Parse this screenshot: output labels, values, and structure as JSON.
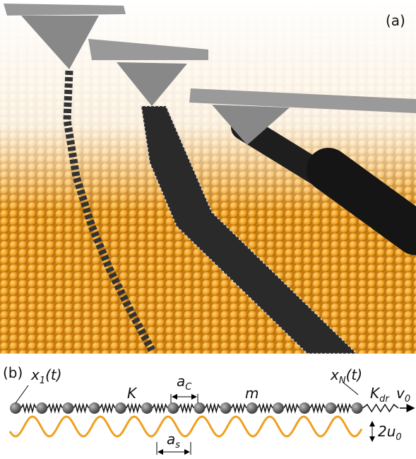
{
  "panel_a": "(a)",
  "panel_b": "(b)",
  "labels": {
    "x1": {
      "base": "x",
      "sub": "1",
      "tail": "(t)"
    },
    "K": "K",
    "aC": {
      "base": "a",
      "sub": "C"
    },
    "m": "m",
    "xN": {
      "base": "x",
      "sub": "N",
      "tail": "(t)"
    },
    "Kdr": {
      "base": "K",
      "sub": "dr"
    },
    "v0": {
      "base": "v",
      "sub": "0"
    },
    "as": {
      "base": "a",
      "sub": "s"
    },
    "u0": {
      "base": "2u",
      "sub": "0"
    }
  }
}
